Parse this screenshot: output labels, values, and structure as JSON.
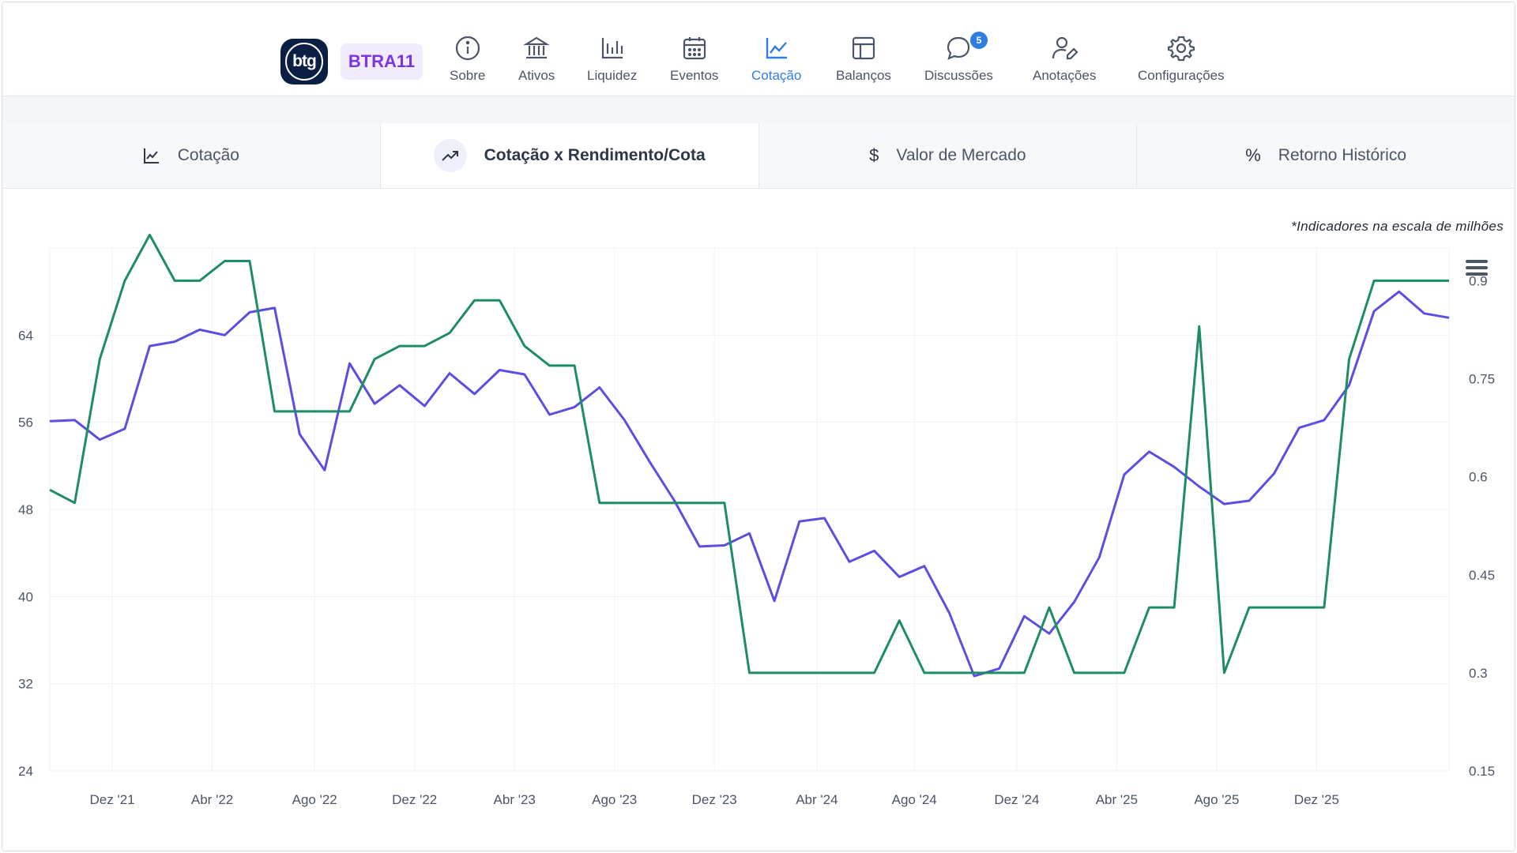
{
  "header": {
    "logo_text": "btg",
    "ticker": "BTRA11",
    "nav": [
      {
        "label": "Sobre",
        "icon": "info-icon"
      },
      {
        "label": "Ativos",
        "icon": "bank-icon"
      },
      {
        "label": "Liquidez",
        "icon": "bar-chart-icon"
      },
      {
        "label": "Eventos",
        "icon": "calendar-icon"
      },
      {
        "label": "Cotação",
        "icon": "line-chart-icon",
        "active": true
      },
      {
        "label": "Balanços",
        "icon": "layout-icon"
      },
      {
        "label": "Discussões",
        "icon": "chat-icon",
        "badge": "5"
      },
      {
        "label": "Anotações",
        "icon": "user-edit-icon"
      },
      {
        "label": "Configurações",
        "icon": "gear-icon"
      }
    ]
  },
  "tabs": [
    {
      "label": "Cotação",
      "icon": "line-chart-icon"
    },
    {
      "label": "Cotação x Rendimento/Cota",
      "icon": "trending-up-icon",
      "active": true
    },
    {
      "label": "Valor de Mercado",
      "icon": "dollar-icon"
    },
    {
      "label": "Retorno Histórico",
      "icon": "percent-icon"
    }
  ],
  "note": "*Indicadores na escala de milhões",
  "colors": {
    "accent": "#2f7de1",
    "price_line": "#5b4ee0",
    "dividend_line": "#1e8c64",
    "ticker": "#7b34e0"
  },
  "chart_data": {
    "type": "line",
    "title": "",
    "x_ticks": [
      "Dez '21",
      "Abr '22",
      "Ago '22",
      "Dez '22",
      "Abr '23",
      "Ago '23",
      "Dez '23",
      "Abr '24",
      "Ago '24",
      "Dez '24",
      "Abr '25",
      "Ago '25",
      "Dez '25"
    ],
    "x_tick_index": [
      2.5,
      6.5,
      10.6,
      14.6,
      18.6,
      22.6,
      26.6,
      30.7,
      34.6,
      38.7,
      42.7,
      46.7,
      50.7
    ],
    "y_left": {
      "ticks": [
        "24",
        "32",
        "40",
        "48",
        "56",
        "64"
      ],
      "range": [
        24,
        72
      ]
    },
    "y_right": {
      "ticks": [
        "0.15",
        "0.3",
        "0.45",
        "0.6",
        "0.75",
        "0.9"
      ],
      "range": [
        0.15,
        0.95
      ]
    },
    "grid": true,
    "series": [
      {
        "axis": "left",
        "values": [
          56.1,
          56.2,
          54.4,
          55.4,
          63.0,
          63.4,
          64.5,
          64.0,
          66.1,
          66.5,
          54.9,
          51.6,
          61.4,
          57.7,
          59.4,
          57.5,
          60.5,
          58.6,
          60.8,
          60.4,
          56.7,
          57.4,
          59.2,
          56.2,
          52.4,
          48.8,
          44.6,
          44.7,
          45.8,
          39.6,
          46.9,
          47.2,
          43.2,
          44.2,
          41.8,
          42.8,
          38.5,
          32.7,
          33.4,
          38.2,
          36.6,
          39.5,
          43.6,
          51.2,
          53.3,
          51.9,
          50.1,
          48.5,
          48.8,
          51.3,
          55.5,
          56.2,
          59.4,
          66.2,
          68.0,
          66.0,
          65.6
        ]
      },
      {
        "axis": "right",
        "values": [
          0.58,
          0.56,
          0.78,
          0.9,
          0.97,
          0.9,
          0.9,
          0.93,
          0.93,
          0.7,
          0.7,
          0.7,
          0.7,
          0.78,
          0.8,
          0.8,
          0.82,
          0.87,
          0.87,
          0.8,
          0.77,
          0.77,
          0.56,
          0.56,
          0.56,
          0.56,
          0.56,
          0.56,
          0.3,
          0.3,
          0.3,
          0.3,
          0.3,
          0.3,
          0.38,
          0.3,
          0.3,
          0.3,
          0.3,
          0.3,
          0.4,
          0.3,
          0.3,
          0.3,
          0.4,
          0.4,
          0.83,
          0.3,
          0.4,
          0.4,
          0.4,
          0.4,
          0.78,
          0.9,
          0.9,
          0.9,
          0.9
        ]
      }
    ]
  }
}
